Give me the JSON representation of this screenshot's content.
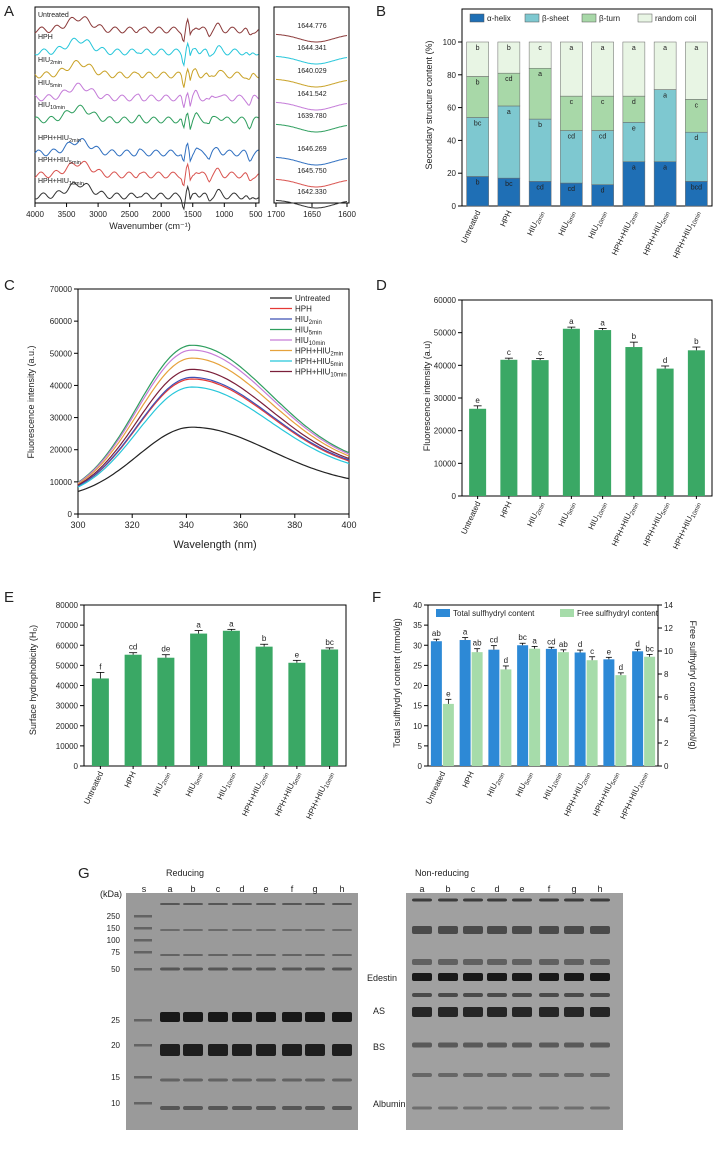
{
  "panels": {
    "A": "A",
    "B": "B",
    "C": "C",
    "D": "D",
    "E": "E",
    "F": "F",
    "G": "G"
  },
  "colors": {
    "green_bar": "#3aa865",
    "helix": "#1f6fb5",
    "sheet": "#7ec8d0",
    "turn": "#a8d8a8",
    "coil": "#e8f5e4",
    "total_sh": "#2d89d6",
    "free_sh": "#a6dcaa"
  },
  "samples": [
    "Untreated",
    "HPH",
    "HIU2min",
    "HIU5min",
    "HIU10min",
    "HPH+HIU2min",
    "HPH+HIU5min",
    "HPH+HIU10min"
  ],
  "chart_data": [
    {
      "id": "A",
      "type": "line",
      "title": "",
      "xlabel": "Wavenumber (cm⁻¹)",
      "x_ticks": [
        "4000",
        "3500",
        "3000",
        "2500",
        "2000",
        "1500",
        "1000",
        "500"
      ],
      "x2_ticks": [
        "1700",
        "1650",
        "1600"
      ],
      "xlim": [
        4000,
        450
      ],
      "series_names": [
        "Untreated",
        "HPH",
        "HIU2min",
        "HIU5min",
        "HIU10min",
        "HPH+HIU2min",
        "HPH+HIU5min",
        "HPH+HIU10min"
      ],
      "series_colors": [
        "#8b3a3a",
        "#26c6da",
        "#c9a227",
        "#c47bd8",
        "#2e9e5e",
        "#2f6fc0",
        "#d9534f",
        "#333333"
      ],
      "amide_peaks": [
        "1644.776",
        "1644.341",
        "1640.029",
        "1641.542",
        "1639.780",
        "1646.269",
        "1645.750",
        "1642.330"
      ]
    },
    {
      "id": "B",
      "type": "bar",
      "stacked": true,
      "ylabel": "Secondary structure content (%)",
      "ylim": [
        0,
        100
      ],
      "y_ticks": [
        "0",
        "20",
        "40",
        "60",
        "80",
        "100"
      ],
      "legend": [
        "α-helix",
        "β-sheet",
        "β-turn",
        "random coil"
      ],
      "series": [
        {
          "name": "α-helix",
          "values": [
            18,
            17,
            15,
            14,
            13,
            27,
            27,
            15
          ],
          "letters": [
            "b",
            "bc",
            "cd",
            "cd",
            "d",
            "a",
            "a",
            "bcd"
          ]
        },
        {
          "name": "β-sheet",
          "values": [
            36,
            44,
            38,
            32,
            33,
            24,
            44,
            30
          ],
          "letters": [
            "bc",
            "a",
            "b",
            "cd",
            "cd",
            "e",
            "a",
            "d"
          ]
        },
        {
          "name": "β-turn",
          "values": [
            25,
            20,
            31,
            21,
            21,
            16,
            0,
            20
          ],
          "letters": [
            "b",
            "cd",
            "a",
            "c",
            "c",
            "d",
            "a",
            "c"
          ]
        },
        {
          "name": "random coil",
          "values": [
            21,
            19,
            16,
            33,
            33,
            33,
            29,
            35
          ],
          "letters": [
            "b",
            "b",
            "c",
            "a",
            "a",
            "a",
            "a",
            "a"
          ]
        }
      ]
    },
    {
      "id": "C",
      "type": "line",
      "xlabel": "Wavelength (nm)",
      "ylabel": "Fluorescence intensity (a.u.)",
      "xlim": [
        300,
        400
      ],
      "ylim": [
        0,
        70000
      ],
      "x_ticks": [
        "300",
        "320",
        "340",
        "360",
        "380",
        "400"
      ],
      "y_ticks": [
        "0",
        "10000",
        "20000",
        "30000",
        "40000",
        "50000",
        "60000",
        "70000"
      ],
      "peak_x": 342,
      "series": [
        {
          "name": "Untreated",
          "peak": 27000,
          "color": "#222222"
        },
        {
          "name": "HPH",
          "peak": 42000,
          "color": "#e53935"
        },
        {
          "name": "HIU2min",
          "peak": 42500,
          "color": "#3f51b5"
        },
        {
          "name": "HIU5min",
          "peak": 52500,
          "color": "#2e9e5e"
        },
        {
          "name": "HIU10min",
          "peak": 51000,
          "color": "#c77dd8"
        },
        {
          "name": "HPH+HIU2min",
          "peak": 48500,
          "color": "#e6a23c"
        },
        {
          "name": "HPH+HIU5min",
          "peak": 39500,
          "color": "#26c6da"
        },
        {
          "name": "HPH+HIU10min",
          "peak": 45000,
          "color": "#7b1f3a"
        }
      ],
      "end_values": [
        8500,
        12500,
        12800,
        13800,
        13600,
        13300,
        12000,
        12900
      ]
    },
    {
      "id": "D",
      "type": "bar",
      "ylabel": "Fluorescence intensity (a.u)",
      "ylim": [
        0,
        60000
      ],
      "y_ticks": [
        "0",
        "10000",
        "20000",
        "30000",
        "40000",
        "50000",
        "60000"
      ],
      "values": [
        26700,
        41700,
        41600,
        51200,
        50800,
        45600,
        39000,
        44600
      ],
      "errors": [
        900,
        500,
        500,
        500,
        500,
        1500,
        800,
        1000
      ],
      "letters": [
        "e",
        "c",
        "c",
        "a",
        "a",
        "b",
        "d",
        "b"
      ]
    },
    {
      "id": "E",
      "type": "bar",
      "ylabel": "Surface hydrophobicity (H₀)",
      "ylim": [
        0,
        80000
      ],
      "y_ticks": [
        "0",
        "10000",
        "20000",
        "30000",
        "40000",
        "50000",
        "60000",
        "70000",
        "80000"
      ],
      "values": [
        43500,
        55300,
        53800,
        65800,
        67200,
        59300,
        51300,
        57900
      ],
      "errors": [
        3000,
        1000,
        1500,
        1500,
        700,
        1200,
        1200,
        800
      ],
      "letters": [
        "f",
        "cd",
        "de",
        "a",
        "a",
        "b",
        "e",
        "bc"
      ]
    },
    {
      "id": "F",
      "type": "bar",
      "ylabel": "Total sulfhydryl content (mmol/g)",
      "ylabel2": "Free sulfhydryl  content (mmol/g)",
      "ylim": [
        0,
        40
      ],
      "ylim2": [
        0,
        14
      ],
      "y_ticks": [
        "0",
        "5",
        "10",
        "15",
        "20",
        "25",
        "30",
        "35",
        "40"
      ],
      "y2_ticks": [
        "0",
        "2",
        "4",
        "6",
        "8",
        "10",
        "12",
        "14"
      ],
      "legend": [
        "Total sulfhydryl content",
        "Free sulfhydryl  content"
      ],
      "series": [
        {
          "name": "Total sulfhydryl content",
          "values": [
            31.0,
            31.3,
            28.9,
            30.0,
            29.1,
            28.2,
            26.5,
            28.5
          ],
          "errors": [
            0.5,
            0.6,
            1.0,
            0.5,
            0.4,
            0.6,
            0.5,
            0.5
          ],
          "letters": [
            "ab",
            "a",
            "cd",
            "bc",
            "cd",
            "d",
            "e",
            "d"
          ]
        },
        {
          "name": "Free sulfhydryl  content",
          "values": [
            5.4,
            9.9,
            8.4,
            10.2,
            9.9,
            9.2,
            7.9,
            9.5
          ],
          "errors": [
            0.4,
            0.3,
            0.3,
            0.2,
            0.2,
            0.3,
            0.2,
            0.2
          ],
          "letters": [
            "e",
            "ab",
            "d",
            "a",
            "ab",
            "c",
            "d",
            "bc"
          ]
        }
      ]
    }
  ],
  "gel": {
    "reducing_title": "Reducing",
    "nonreducing_title": "Non-reducing",
    "kda_label": "(kDa)",
    "lane_s": "s",
    "lanes": [
      "a",
      "b",
      "c",
      "d",
      "e",
      "f",
      "g",
      "h"
    ],
    "markers": [
      "250",
      "150",
      "100",
      "75",
      "50",
      "25",
      "20",
      "15",
      "10"
    ],
    "bands": [
      "Edestin",
      "AS",
      "BS",
      "Albumin"
    ]
  }
}
